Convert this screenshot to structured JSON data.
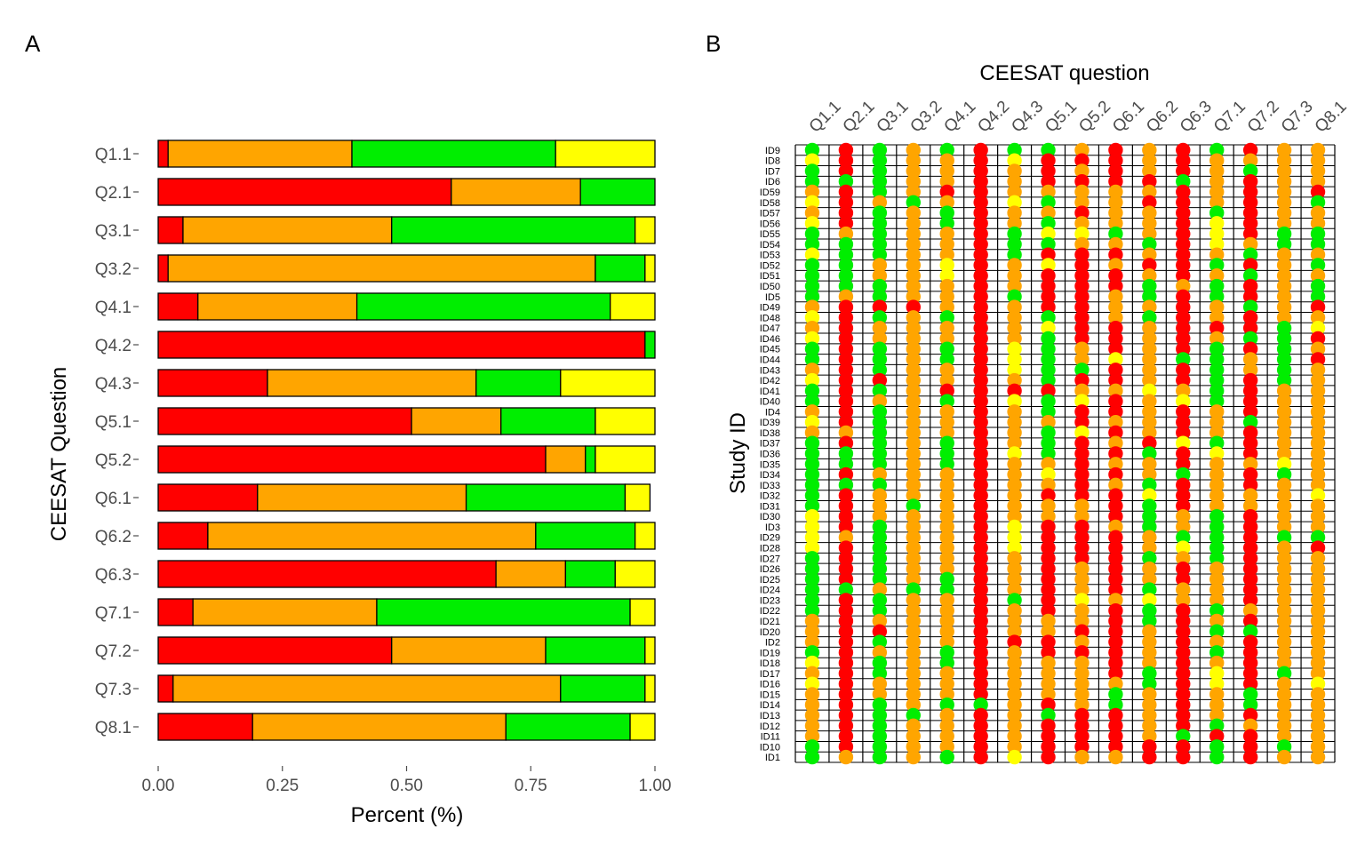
{
  "colors": {
    "red": "#FF0000",
    "orange": "#FFA500",
    "green": "#00EE00",
    "yellow": "#FFFF00",
    "axis_text": "#4D4D4D",
    "outline": "#000000"
  },
  "chart_data": [
    {
      "type": "bar",
      "orientation": "horizontal",
      "stacked": true,
      "panel_label": "A",
      "xlabel": "Percent (%)",
      "ylabel": "CEESAT Question",
      "xlim": [
        0,
        1
      ],
      "x_ticks": [
        "0.00",
        "0.25",
        "0.50",
        "0.75",
        "1.00"
      ],
      "x_tick_values": [
        0,
        0.25,
        0.5,
        0.75,
        1.0
      ],
      "grid": false,
      "legend": "none",
      "categories": [
        "Q1.1",
        "Q2.1",
        "Q3.1",
        "Q3.2",
        "Q4.1",
        "Q4.2",
        "Q4.3",
        "Q5.1",
        "Q5.2",
        "Q6.1",
        "Q6.2",
        "Q6.3",
        "Q7.1",
        "Q7.2",
        "Q7.3",
        "Q8.1"
      ],
      "series": [
        {
          "color": "red",
          "values": [
            0.02,
            0.59,
            0.05,
            0.02,
            0.08,
            0.98,
            0.22,
            0.51,
            0.78,
            0.2,
            0.1,
            0.68,
            0.07,
            0.47,
            0.03,
            0.19
          ]
        },
        {
          "color": "orange",
          "values": [
            0.37,
            0.26,
            0.42,
            0.86,
            0.32,
            0.0,
            0.42,
            0.18,
            0.08,
            0.42,
            0.66,
            0.14,
            0.37,
            0.31,
            0.78,
            0.51
          ]
        },
        {
          "color": "green",
          "values": [
            0.41,
            0.15,
            0.49,
            0.1,
            0.51,
            0.02,
            0.17,
            0.19,
            0.02,
            0.32,
            0.2,
            0.1,
            0.51,
            0.2,
            0.17,
            0.25
          ]
        },
        {
          "color": "yellow",
          "values": [
            0.2,
            0.0,
            0.04,
            0.02,
            0.09,
            0.0,
            0.19,
            0.12,
            0.12,
            0.05,
            0.04,
            0.08,
            0.05,
            0.02,
            0.02,
            0.05
          ]
        }
      ]
    },
    {
      "type": "heatmap",
      "panel_label": "B",
      "title": "CEESAT question",
      "ylabel": "Study ID",
      "grid": true,
      "legend": "none",
      "columns": [
        "Q1.1",
        "Q2.1",
        "Q3.1",
        "Q3.2",
        "Q4.1",
        "Q4.2",
        "Q4.3",
        "Q5.1",
        "Q5.2",
        "Q6.1",
        "Q6.2",
        "Q6.3",
        "Q7.1",
        "Q7.2",
        "Q7.3",
        "Q8.1"
      ],
      "rows": [
        "ID9",
        "ID8",
        "ID7",
        "ID6",
        "ID59",
        "ID58",
        "ID57",
        "ID56",
        "ID55",
        "ID54",
        "ID53",
        "ID52",
        "ID51",
        "ID50",
        "ID5",
        "ID49",
        "ID48",
        "ID47",
        "ID46",
        "ID45",
        "ID44",
        "ID43",
        "ID42",
        "ID41",
        "ID40",
        "ID4",
        "ID39",
        "ID38",
        "ID37",
        "ID36",
        "ID35",
        "ID34",
        "ID33",
        "ID32",
        "ID31",
        "ID30",
        "ID3",
        "ID29",
        "ID28",
        "ID27",
        "ID26",
        "ID25",
        "ID24",
        "ID23",
        "ID22",
        "ID21",
        "ID20",
        "ID2",
        "ID19",
        "ID18",
        "ID17",
        "ID16",
        "ID15",
        "ID14",
        "ID13",
        "ID12",
        "ID11",
        "ID10",
        "ID1"
      ],
      "color_codes": {
        "R": "red",
        "O": "orange",
        "G": "green",
        "Y": "yellow"
      },
      "cells": [
        "GRGOGRGGORORGROO",
        "YRGOORYRRROROOOO",
        "GRGOOROROROROGOO",
        "GGGOORORRRRGOROO",
        "ORGORROOOOOROROR",
        "YROGORYGOORROROG",
        "ORGOGROOROORGROO",
        "YRGOGROGOOORYROO",
        "GOGOORGYYGORYRGG",
        "GGGOORGGOOGRYOGG",
        "YGGOORGRRROROGOO",
        "GGOOYROYRORRGROG",
        "GGOOYRORRROROGOO",
        "GGGOORORRRGOGROG",
        "GOGOORGRROGRGROG",
        "ORRRORORROOROGOR",
        "YRGOGROGROGROROO",
        "OROOOROYRRORRRGY",
        "YROOOROGRROROGGR",
        "GRGOGRYGORORGRGO",
        "GRGOGRYGOYOGGOGR",
        "ORGOORYGGRORGOGO",
        "YRROOROGRRORGRGO",
        "GRGORRRROOYOGROO",
        "GROOGRYGYROYGROO",
        "ORGOOROGRROROROO",
        "YRGOOROOROOROGOO",
        "OOGOOROGYROROROO",
        "GRGOGROGRORYGROO",
        "GGGOGRYGRRGRYROO",
        "GGGOGROOROOROOYO",
        "GROOOROYRROGORGO",
        "GGGOOROOROGROROO",
        "GROOORORRRYROOOY",
        "GROGOROOORGROOOO",
        "YROOOROOORGOGROO",
        "YRGOORYRROGOGROO",
        "YOGOORYRRROGGRGG",
        "YRGOORYRRROYGROR",
        "GRGOORORRRGOGROO",
        "GRGOOROROROROROO",
        "GRGOGROROROROROO",
        "GGOGGRORORGOOROO",
        "GRGOORGRYOYOOROO",
        "GRGOORORORGRGOOO",
        "OROOOROOORGROROO",
        "ORROOROORRORGGOO",
        "ORGOORRROROROROO",
        "GROOGRORRRORGROO",
        "YRGOGROOOROROROO",
        "ORGOOROOORGRYRGO",
        "YROOOROOOOGRYROY",
        "OROOOROOOGOROGOO",
        "ORGOGGOROGOROGOO",
        "ORGGOROGRROROROO",
        "ORGOORORRRORGOOO",
        "ORGOORORRROGRROO",
        "GRGOORORRRRRGRGO",
        "GOGOGRYROORRGROO"
      ]
    }
  ]
}
